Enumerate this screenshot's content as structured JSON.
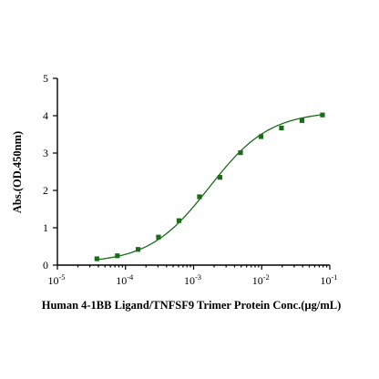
{
  "chart_data": {
    "type": "scatter",
    "title": "",
    "xlabel": "Human 4-1BB Ligand/TNFSF9 Trimer Protein  Conc.(µg/mL)",
    "ylabel": "Abs.(OD.450nm)",
    "xscale": "log",
    "xlim": [
      1e-05,
      0.1
    ],
    "ylim": [
      0,
      5
    ],
    "x_ticks": [
      {
        "value": 1e-05,
        "base": "10",
        "exp": "-5"
      },
      {
        "value": 0.0001,
        "base": "10",
        "exp": "-4"
      },
      {
        "value": 0.001,
        "base": "10",
        "exp": "-3"
      },
      {
        "value": 0.01,
        "base": "10",
        "exp": "-2"
      },
      {
        "value": 0.1,
        "base": "10",
        "exp": "-1"
      }
    ],
    "y_ticks": [
      {
        "value": 0,
        "label": "0"
      },
      {
        "value": 1,
        "label": "1"
      },
      {
        "value": 2,
        "label": "2"
      },
      {
        "value": 3,
        "label": "3"
      },
      {
        "value": 4,
        "label": "4"
      },
      {
        "value": 5,
        "label": "5"
      }
    ],
    "grid": false,
    "legend": "none",
    "marker_color": "#1a6b1a",
    "curve_color": "#1a6b1a",
    "series": [
      {
        "marker": "square",
        "x": [
          3.8e-05,
          7.6e-05,
          0.000153,
          0.000305,
          0.00061,
          0.00122,
          0.00244,
          0.00488,
          0.00977,
          0.0195,
          0.039,
          0.078
        ],
        "y": [
          0.17,
          0.25,
          0.42,
          0.75,
          1.19,
          1.83,
          2.35,
          3.01,
          3.44,
          3.67,
          3.87,
          4.02
        ]
      }
    ],
    "fit": {
      "model": "4PL",
      "bottom": 0.05,
      "top": 4.12,
      "ec50": 0.0017,
      "hill": 0.98
    }
  }
}
